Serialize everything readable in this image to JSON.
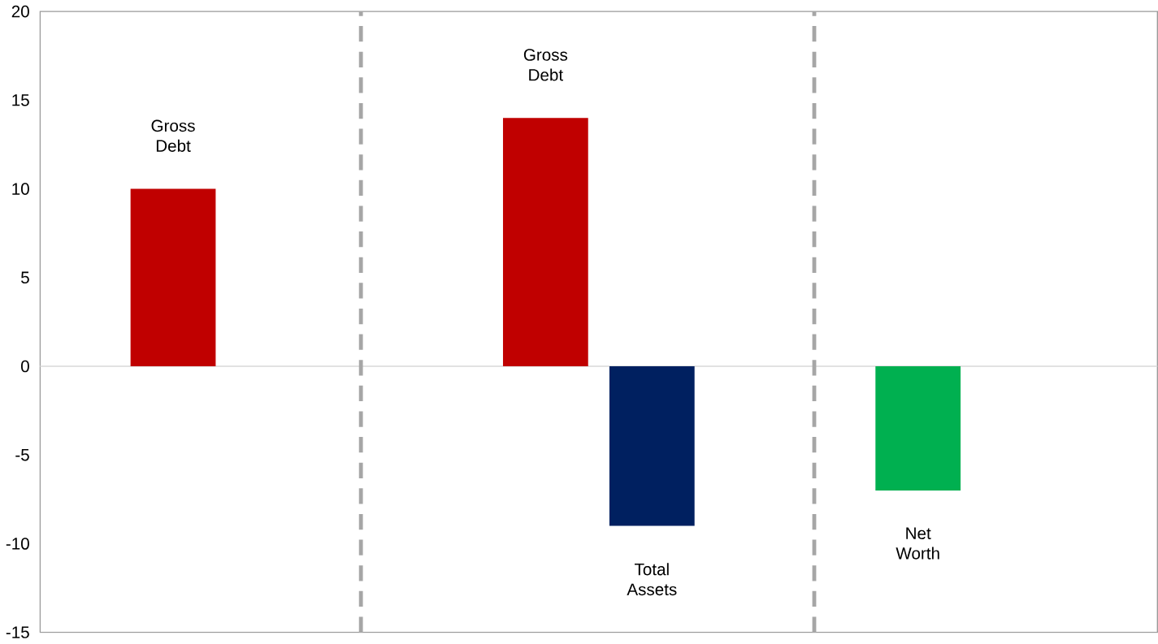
{
  "chart_data": {
    "type": "bar",
    "categories": [
      null,
      null,
      null,
      null,
      null,
      null,
      null,
      null,
      null,
      null,
      null,
      null,
      null,
      null,
      null,
      null,
      null,
      null,
      null,
      null,
      null
    ],
    "series": [
      {
        "name": "Gross Debt",
        "color": "#c00000",
        "values": [
          null,
          null,
          10,
          null,
          null,
          null,
          null,
          null,
          null,
          14,
          null,
          null,
          null,
          null,
          null,
          null,
          null,
          null,
          null,
          null,
          null
        ]
      },
      {
        "name": "Total Assets",
        "color": "#002060",
        "values": [
          null,
          null,
          null,
          null,
          null,
          null,
          null,
          null,
          null,
          null,
          null,
          -9,
          null,
          null,
          null,
          null,
          null,
          null,
          null,
          null,
          null
        ]
      },
      {
        "name": "Net Worth",
        "color": "#00b050",
        "values": [
          null,
          null,
          null,
          null,
          null,
          null,
          null,
          null,
          null,
          null,
          null,
          null,
          null,
          null,
          null,
          null,
          -7,
          null,
          null,
          null,
          null
        ]
      }
    ],
    "ylim": [
      -15,
      20
    ],
    "yticks": [
      -15,
      -10,
      -5,
      0,
      5,
      10,
      15,
      20
    ],
    "ref_lines": [
      {
        "axis": "y",
        "value": 0,
        "color": "#d9d9d9",
        "line_style": "solid"
      }
    ]
  }
}
